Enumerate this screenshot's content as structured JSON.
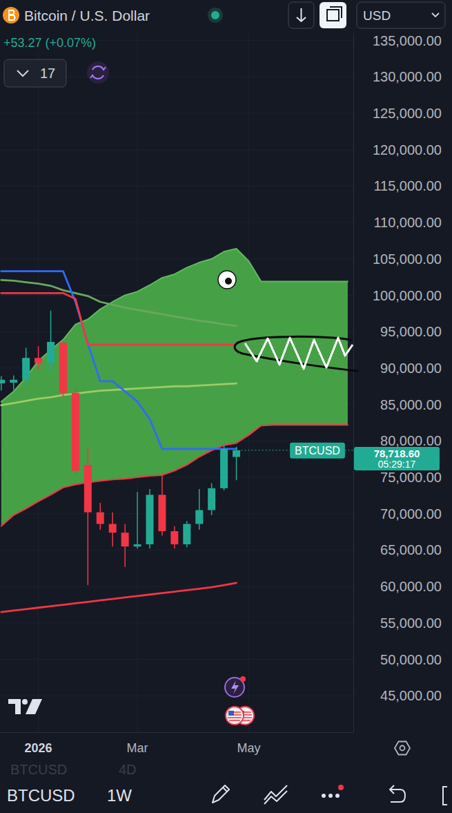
{
  "header": {
    "title": "Bitcoin / U.S. Dollar",
    "change": "+53.27 (+0.07%)",
    "currency": "USD",
    "indicator_count": 17
  },
  "toolbar": {
    "symbol": "BTCUSD",
    "interval": "1W",
    "background_symbol": "BTCUSD",
    "background_interval": "4D"
  },
  "chart_data": {
    "type": "candlestick",
    "categories": [
      null,
      null,
      null,
      "2026",
      null,
      null,
      null,
      null,
      null,
      null,
      null,
      "Mar",
      null,
      null,
      null,
      null,
      null,
      null,
      null,
      null,
      "May",
      null,
      null,
      null,
      null,
      null,
      null,
      null,
      null
    ],
    "open": [
      87900,
      88000,
      88400,
      91400,
      90700,
      93500,
      86600,
      76700,
      70200,
      68600,
      67400,
      65500,
      65800,
      72600,
      67600,
      65800,
      68600,
      70500,
      73500,
      77800,
      null,
      null,
      null,
      null,
      null,
      null,
      null,
      null,
      null
    ],
    "high": [
      88900,
      89000,
      92800,
      93000,
      97900,
      93800,
      87200,
      79000,
      71500,
      70200,
      68600,
      73000,
      73400,
      75400,
      68300,
      69000,
      73400,
      74200,
      79400,
      79200,
      null,
      null,
      null,
      null,
      null,
      null,
      null,
      null,
      null
    ],
    "low": [
      86900,
      87000,
      87600,
      89800,
      89400,
      86000,
      75500,
      60200,
      67800,
      65500,
      62700,
      65200,
      65200,
      67000,
      65200,
      65400,
      67800,
      69800,
      73200,
      74600,
      null,
      null,
      null,
      null,
      null,
      null,
      null,
      null,
      null
    ],
    "close": [
      88400,
      88400,
      91400,
      90700,
      93600,
      86600,
      75900,
      70200,
      68600,
      67400,
      65500,
      65800,
      72600,
      67600,
      65800,
      68600,
      70500,
      73500,
      78900,
      78718.6,
      null,
      null,
      null,
      null,
      null,
      null,
      null,
      null,
      null
    ],
    "series": [
      {
        "type": "cloud_top",
        "color": "#62b862",
        "values": [
          85400,
          86800,
          88700,
          91000,
          92500,
          93900,
          96000,
          96700,
          98100,
          99100,
          100000,
          100500,
          101400,
          102400,
          102900,
          103800,
          104500,
          105000,
          106000,
          106400,
          104700,
          101900,
          101900,
          101900,
          101900,
          101900,
          101900,
          101900,
          101900
        ]
      },
      {
        "type": "cloud_bottom",
        "color": "#f23645",
        "values": [
          68300,
          69800,
          70700,
          71700,
          72600,
          73600,
          74000,
          74300,
          74500,
          74700,
          74800,
          75000,
          75200,
          75300,
          75900,
          76700,
          77800,
          78700,
          79400,
          79700,
          80800,
          82100,
          82200,
          82200,
          82200,
          82200,
          82200,
          82200,
          82200
        ]
      },
      {
        "type": "line",
        "color": "#6aa85f",
        "values": [
          102100,
          102000,
          101800,
          101600,
          101300,
          100700,
          100300,
          99900,
          99100,
          98700,
          98300,
          98000,
          97700,
          97400,
          97100,
          96800,
          96500,
          96300,
          96000,
          95800,
          null,
          null,
          null,
          null,
          null,
          null,
          null,
          null,
          null
        ]
      },
      {
        "type": "line",
        "color": "#9ccc65",
        "values": [
          84900,
          85200,
          85500,
          85800,
          86000,
          86300,
          86500,
          86700,
          86900,
          87000,
          87100,
          87200,
          87300,
          87400,
          87500,
          87500,
          87600,
          87700,
          87800,
          87900,
          null,
          null,
          null,
          null,
          null,
          null,
          null,
          null,
          null
        ]
      },
      {
        "type": "line",
        "color": "#2f6bff",
        "values": [
          103300,
          103300,
          103300,
          103300,
          103300,
          103300,
          99100,
          93400,
          88200,
          88200,
          86800,
          85400,
          83000,
          78900,
          78900,
          78900,
          78900,
          78900,
          78900,
          78900,
          null,
          null,
          null,
          null,
          null,
          null,
          null,
          null,
          null
        ]
      },
      {
        "type": "line",
        "color": "#f23645",
        "values": [
          100300,
          100300,
          100300,
          100300,
          100300,
          100300,
          99500,
          93200,
          93200,
          93200,
          93200,
          93200,
          93200,
          93200,
          93200,
          93200,
          93200,
          93200,
          93200,
          93200,
          null,
          null,
          null,
          null,
          null,
          null,
          null,
          null,
          null
        ]
      },
      {
        "type": "line",
        "color": "#f23645",
        "values": [
          56500,
          56700,
          56900,
          57100,
          57300,
          57500,
          57700,
          57900,
          58100,
          58300,
          58500,
          58700,
          58900,
          59100,
          59300,
          59500,
          59700,
          59900,
          60200,
          60500,
          null,
          null,
          null,
          null,
          null,
          null,
          null,
          null,
          null
        ]
      }
    ],
    "ylim": [
      40000,
      136000
    ],
    "yticks": [
      {
        "value": 45000,
        "label": "45,000.00"
      },
      {
        "value": 50000,
        "label": "50,000.00"
      },
      {
        "value": 55000,
        "label": "55,000.00"
      },
      {
        "value": 60000,
        "label": "60,000.00"
      },
      {
        "value": 65000,
        "label": "65,000.00"
      },
      {
        "value": 70000,
        "label": "70,000.00"
      },
      {
        "value": 75000,
        "label": "75,000.00"
      },
      {
        "value": 80000,
        "label": "80,000.00"
      },
      {
        "value": 85000,
        "label": "85,000.00"
      },
      {
        "value": 90000,
        "label": "90,000.00"
      },
      {
        "value": 95000,
        "label": "95,000.00"
      },
      {
        "value": 100000,
        "label": "100,000.00"
      },
      {
        "value": 105000,
        "label": "105,000.00"
      },
      {
        "value": 110000,
        "label": "110,000.00"
      },
      {
        "value": 115000,
        "label": "115,000.00"
      },
      {
        "value": 120000,
        "label": "120,000.00"
      },
      {
        "value": 125000,
        "label": "125,000.00"
      },
      {
        "value": 130000,
        "label": "130,000.00"
      },
      {
        "value": 135000,
        "label": "135,000.00"
      }
    ],
    "last_price": {
      "value": 78718.6,
      "label": "78,718.60",
      "symbol": "BTCUSD",
      "countdown": "05:29:17"
    },
    "grid": true
  }
}
